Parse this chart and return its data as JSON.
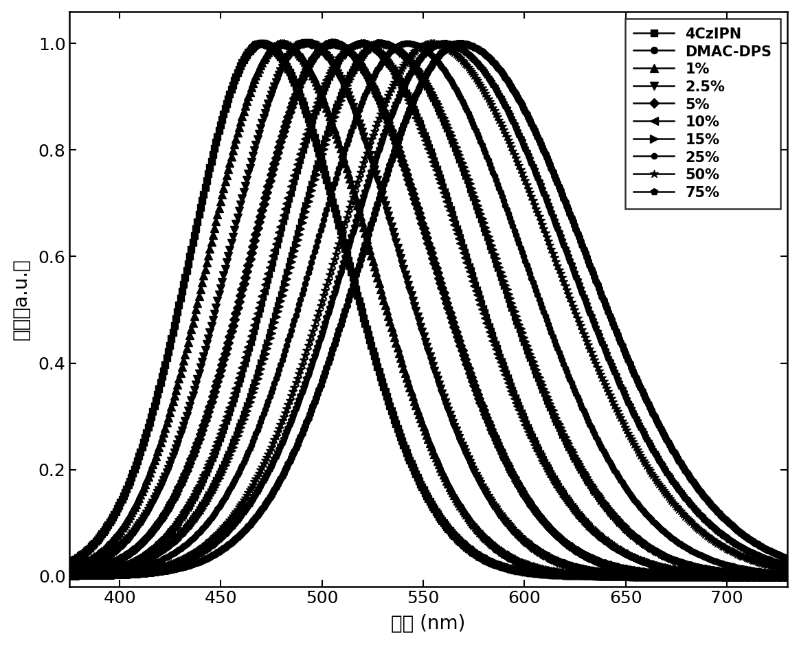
{
  "series": [
    {
      "label": "4CzIPN",
      "peak": 470,
      "sigma_l": 35,
      "sigma_r": 42,
      "marker": "s",
      "markersize": 7,
      "markevery": 6
    },
    {
      "label": "DMAC-DPS",
      "peak": 568,
      "sigma_l": 48,
      "sigma_r": 62,
      "marker": "o",
      "markersize": 7,
      "markevery": 6
    },
    {
      "label": "1%",
      "peak": 480,
      "sigma_l": 36,
      "sigma_r": 44,
      "marker": "^",
      "markersize": 8,
      "markevery": 6
    },
    {
      "label": "2.5%",
      "peak": 492,
      "sigma_l": 38,
      "sigma_r": 46,
      "marker": "v",
      "markersize": 8,
      "markevery": 6
    },
    {
      "label": "5%",
      "peak": 505,
      "sigma_l": 40,
      "sigma_r": 49,
      "marker": "D",
      "markersize": 7,
      "markevery": 6
    },
    {
      "label": "10%",
      "peak": 518,
      "sigma_l": 42,
      "sigma_r": 52,
      "marker": "<",
      "markersize": 8,
      "markevery": 6
    },
    {
      "label": "15%",
      "peak": 530,
      "sigma_l": 44,
      "sigma_r": 55,
      "marker": ">",
      "markersize": 8,
      "markevery": 6
    },
    {
      "label": "25%",
      "peak": 542,
      "sigma_l": 46,
      "sigma_r": 57,
      "marker": "o",
      "markersize": 6,
      "markevery": 6
    },
    {
      "label": "50%",
      "peak": 554,
      "sigma_l": 47,
      "sigma_r": 60,
      "marker": "*",
      "markersize": 9,
      "markevery": 6
    },
    {
      "label": "75%",
      "peak": 560,
      "sigma_l": 48,
      "sigma_r": 61,
      "marker": "p",
      "markersize": 7,
      "markevery": 6
    }
  ],
  "xmin": 375,
  "xmax": 730,
  "ymin": -0.02,
  "ymax": 1.06,
  "xlabel": "波长（nm）",
  "ylabel": "强度（a.u.）",
  "xlabel_display": "波长 (nm)",
  "ylabel_display": "强度（a.u.）",
  "line_color": "#000000",
  "linewidth": 1.8,
  "legend_fontsize": 15,
  "axis_fontsize": 20,
  "tick_fontsize": 18,
  "xticks": [
    400,
    450,
    500,
    550,
    600,
    650,
    700
  ],
  "yticks": [
    0.0,
    0.2,
    0.4,
    0.6,
    0.8,
    1.0
  ]
}
